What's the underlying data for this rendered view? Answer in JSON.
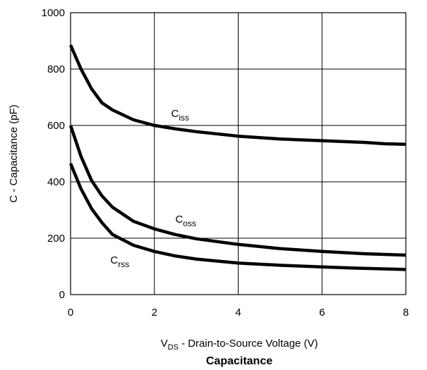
{
  "chart_data": {
    "type": "line",
    "title": "Capacitance",
    "xlabel": {
      "main": "V",
      "sub": "DS",
      "rest": " - Drain-to-Source Voltage (V)"
    },
    "ylabel": "C - Capacitance (pF)",
    "xlim": [
      0,
      8
    ],
    "ylim": [
      0,
      1000
    ],
    "xticks": [
      "0",
      "2",
      "4",
      "6",
      "8"
    ],
    "yticks": [
      "0",
      "200",
      "400",
      "600",
      "800",
      "1000"
    ],
    "grid": true,
    "series": [
      {
        "name": {
          "main": "C",
          "sub": "iss"
        },
        "x": [
          0,
          0.25,
          0.5,
          0.75,
          1,
          1.5,
          2,
          2.5,
          3,
          4,
          5,
          6,
          7,
          7.5,
          8
        ],
        "values": [
          885,
          800,
          730,
          680,
          655,
          620,
          600,
          588,
          578,
          562,
          552,
          546,
          540,
          535,
          533
        ]
      },
      {
        "name": {
          "main": "C",
          "sub": "oss"
        },
        "x": [
          0,
          0.25,
          0.5,
          0.75,
          1,
          1.5,
          2,
          2.5,
          3,
          4,
          5,
          6,
          7,
          8
        ],
        "values": [
          600,
          490,
          405,
          350,
          310,
          260,
          233,
          213,
          198,
          178,
          163,
          153,
          145,
          140
        ]
      },
      {
        "name": {
          "main": "C",
          "sub": "rss"
        },
        "x": [
          0,
          0.25,
          0.5,
          0.75,
          1,
          1.5,
          2,
          2.5,
          3,
          4,
          5,
          6,
          7,
          8
        ],
        "values": [
          465,
          375,
          305,
          255,
          213,
          175,
          153,
          137,
          126,
          112,
          104,
          98,
          93,
          89
        ]
      }
    ]
  }
}
